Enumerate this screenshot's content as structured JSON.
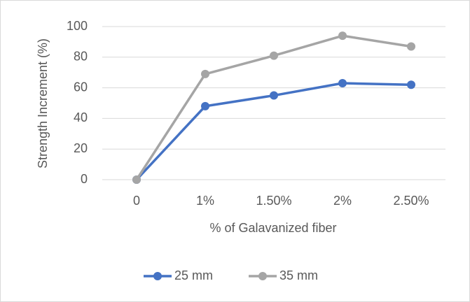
{
  "chart_data": {
    "type": "line",
    "x_label": "% of Galavanized fiber",
    "y_label": "Strength Increment (%)",
    "categories": [
      "0",
      "1%",
      "1.50%",
      "2%",
      "2.50%"
    ],
    "series": [
      {
        "name": "25 mm",
        "color": "#4472c4",
        "values": [
          0,
          48,
          55,
          63,
          62
        ]
      },
      {
        "name": "35 mm",
        "color": "#a5a5a5",
        "values": [
          0,
          69,
          81,
          94,
          87
        ]
      }
    ],
    "ylim": [
      0,
      100
    ],
    "yticks": [
      0,
      20,
      40,
      60,
      80,
      100
    ],
    "grid": true,
    "legend": "bottom"
  }
}
